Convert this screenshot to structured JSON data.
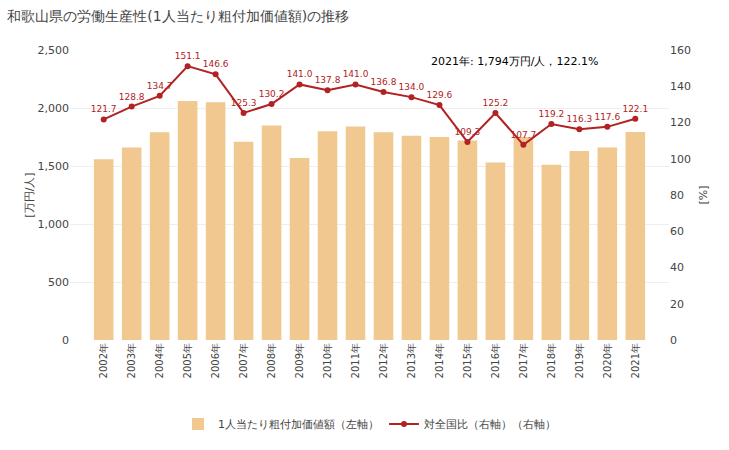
{
  "chart_data": {
    "type": "bar",
    "title": "和歌山県の労働生産性(1人当たり粗付加価値額)の推移",
    "annotation": "2021年: 1,794万円/人，122.1%",
    "ylabel": "[万円/人]",
    "y2label": "[%]",
    "categories": [
      "2002年",
      "2003年",
      "2004年",
      "2005年",
      "2006年",
      "2007年",
      "2008年",
      "2009年",
      "2010年",
      "2011年",
      "2012年",
      "2013年",
      "2014年",
      "2015年",
      "2016年",
      "2017年",
      "2018年",
      "2019年",
      "2020年",
      "2021年"
    ],
    "series": [
      {
        "name": "1人当たり粗付加価値額（左軸）",
        "type": "bar",
        "color": "#F0C890",
        "values": [
          1558,
          1660,
          1790,
          2060,
          2050,
          1710,
          1850,
          1570,
          1800,
          1840,
          1790,
          1760,
          1750,
          1720,
          1530,
          1750,
          1510,
          1630,
          1660,
          1794
        ]
      },
      {
        "name": "対全国比（右軸）（右軸）",
        "type": "line",
        "axis": "y2",
        "color": "#B22222",
        "marker": "circle",
        "line_style": "solid",
        "data_labels": true,
        "values": [
          121.7,
          128.8,
          134.7,
          151.1,
          146.6,
          125.3,
          130.2,
          141.0,
          137.8,
          141.0,
          136.8,
          134.0,
          129.6,
          109.3,
          125.2,
          107.7,
          119.2,
          116.3,
          117.6,
          122.1
        ],
        "value_labels": [
          "121.7",
          "128.8",
          "134.7",
          "151.1",
          "146.6",
          "125.3",
          "130.2",
          "141.0",
          "137.8",
          "141.0",
          "136.8",
          "134.0",
          "129.6",
          "109.3",
          "125.2",
          "107.7",
          "119.2",
          "116.3",
          "117.6",
          "122.1"
        ]
      }
    ],
    "ylim": [
      0,
      2500
    ],
    "yticks": [
      0,
      500,
      {
        "value": 1000,
        "label": "1,000"
      },
      {
        "value": 1500,
        "label": "1,500"
      },
      {
        "value": 2000,
        "label": "2,000"
      },
      {
        "value": 2500,
        "label": "2,500"
      }
    ],
    "y2lim": [
      0,
      160
    ],
    "y2ticks": [
      0,
      20,
      40,
      60,
      80,
      100,
      120,
      140,
      160
    ],
    "grid": true,
    "legend": "bottom"
  }
}
